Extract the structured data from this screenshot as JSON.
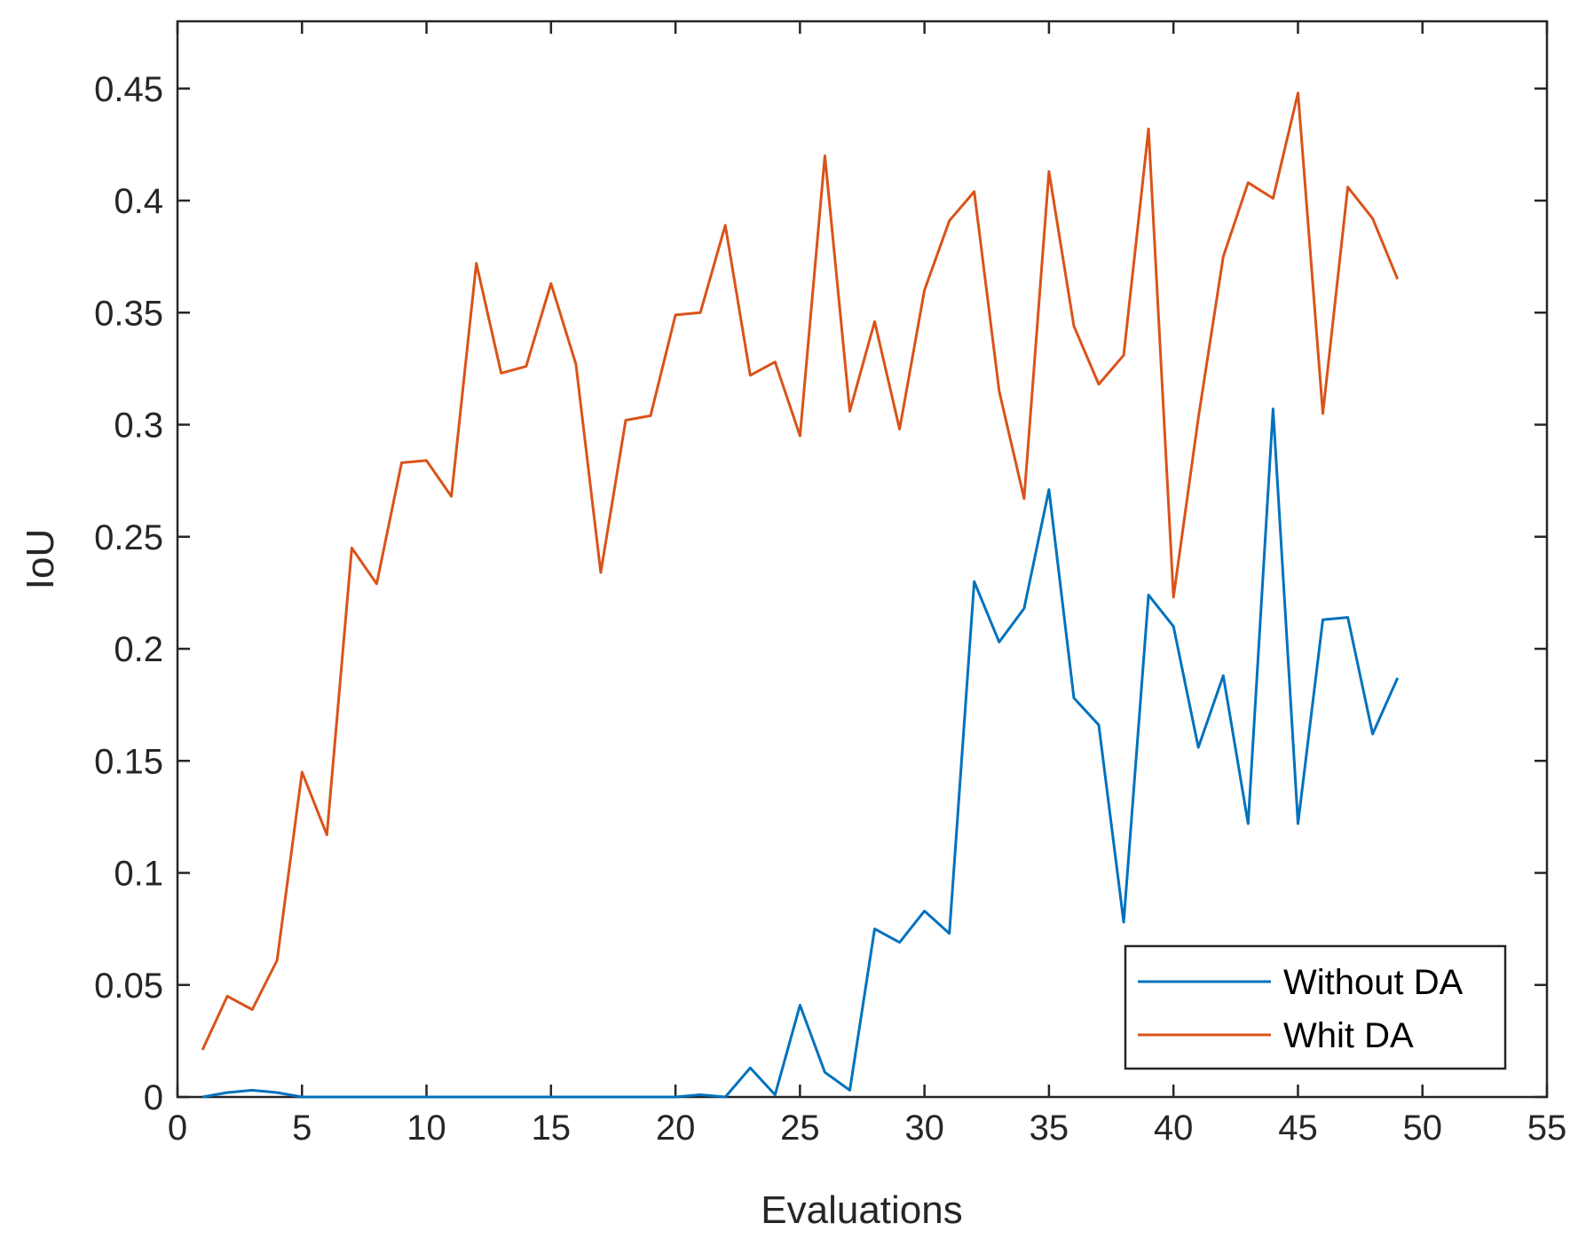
{
  "chart_data": {
    "type": "line",
    "title": "",
    "xlabel": "Evaluations",
    "ylabel": "IoU",
    "xlim": [
      0,
      55
    ],
    "ylim": [
      0,
      0.48
    ],
    "xticks": [
      "0",
      "5",
      "10",
      "15",
      "20",
      "25",
      "30",
      "35",
      "40",
      "45",
      "50",
      "55"
    ],
    "yticks": [
      "0",
      "0.05",
      "0.1",
      "0.15",
      "0.2",
      "0.25",
      "0.3",
      "0.35",
      "0.4",
      "0.45"
    ],
    "grid": false,
    "legend_position": "bottom-right",
    "x": [
      1,
      2,
      3,
      4,
      5,
      6,
      7,
      8,
      9,
      10,
      11,
      12,
      13,
      14,
      15,
      16,
      17,
      18,
      19,
      20,
      21,
      22,
      23,
      24,
      25,
      26,
      27,
      28,
      29,
      30,
      31,
      32,
      33,
      34,
      35,
      36,
      37,
      38,
      39,
      40,
      41,
      42,
      43,
      44,
      45,
      46,
      47,
      48,
      49
    ],
    "series": [
      {
        "name": "Without DA",
        "color": "#0072BD",
        "values": [
          0.0,
          0.002,
          0.003,
          0.002,
          0.0,
          0.0,
          0.0,
          0.0,
          0.0,
          0.0,
          0.0,
          0.0,
          0.0,
          0.0,
          0.0,
          0.0,
          0.0,
          0.0,
          0.0,
          0.0,
          0.001,
          0.0,
          0.013,
          0.001,
          0.041,
          0.011,
          0.003,
          0.075,
          0.069,
          0.083,
          0.073,
          0.23,
          0.203,
          0.218,
          0.271,
          0.178,
          0.166,
          0.078,
          0.224,
          0.21,
          0.156,
          0.188,
          0.122,
          0.307,
          0.122,
          0.213,
          0.214,
          0.162,
          0.187
        ]
      },
      {
        "name": "Whit DA",
        "color": "#D95319",
        "values": [
          0.021,
          0.045,
          0.039,
          0.061,
          0.145,
          0.117,
          0.245,
          0.229,
          0.283,
          0.284,
          0.268,
          0.372,
          0.323,
          0.326,
          0.363,
          0.327,
          0.234,
          0.302,
          0.304,
          0.349,
          0.35,
          0.389,
          0.322,
          0.328,
          0.295,
          0.42,
          0.306,
          0.346,
          0.298,
          0.36,
          0.391,
          0.404,
          0.315,
          0.267,
          0.413,
          0.344,
          0.318,
          0.331,
          0.432,
          0.223,
          0.303,
          0.375,
          0.408,
          0.401,
          0.448,
          0.305,
          0.406,
          0.392,
          0.365
        ]
      }
    ]
  }
}
